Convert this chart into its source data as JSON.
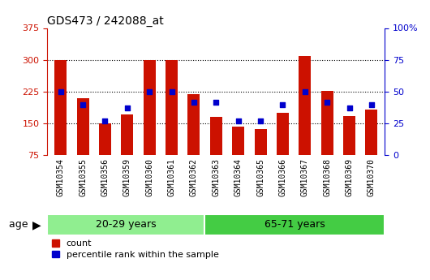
{
  "title": "GDS473 / 242088_at",
  "samples": [
    "GSM10354",
    "GSM10355",
    "GSM10356",
    "GSM10359",
    "GSM10360",
    "GSM10361",
    "GSM10362",
    "GSM10363",
    "GSM10364",
    "GSM10365",
    "GSM10366",
    "GSM10367",
    "GSM10368",
    "GSM10369",
    "GSM10370"
  ],
  "counts": [
    300,
    210,
    150,
    172,
    300,
    300,
    220,
    165,
    143,
    138,
    175,
    310,
    227,
    168,
    182
  ],
  "percentile_ranks": [
    50,
    40,
    27,
    37,
    50,
    50,
    42,
    42,
    27,
    27,
    40,
    50,
    42,
    37,
    40
  ],
  "groups": [
    {
      "label": "20-29 years",
      "start": 0,
      "end": 7,
      "color": "#90EE90"
    },
    {
      "label": "65-71 years",
      "start": 7,
      "end": 15,
      "color": "#44CC44"
    }
  ],
  "ylim_left": [
    75,
    375
  ],
  "ylim_right": [
    0,
    100
  ],
  "yticks_left": [
    75,
    150,
    225,
    300,
    375
  ],
  "yticks_right": [
    0,
    25,
    50,
    75,
    100
  ],
  "bar_color": "#CC1100",
  "dot_color": "#0000CC",
  "grid_yticks": [
    150,
    225,
    300
  ],
  "age_label": "age",
  "legend_count": "count",
  "legend_pct": "percentile rank within the sample",
  "bar_width": 0.55,
  "title_fontsize": 10,
  "tick_label_fontsize": 7,
  "group_label_fontsize": 9,
  "legend_fontsize": 8
}
